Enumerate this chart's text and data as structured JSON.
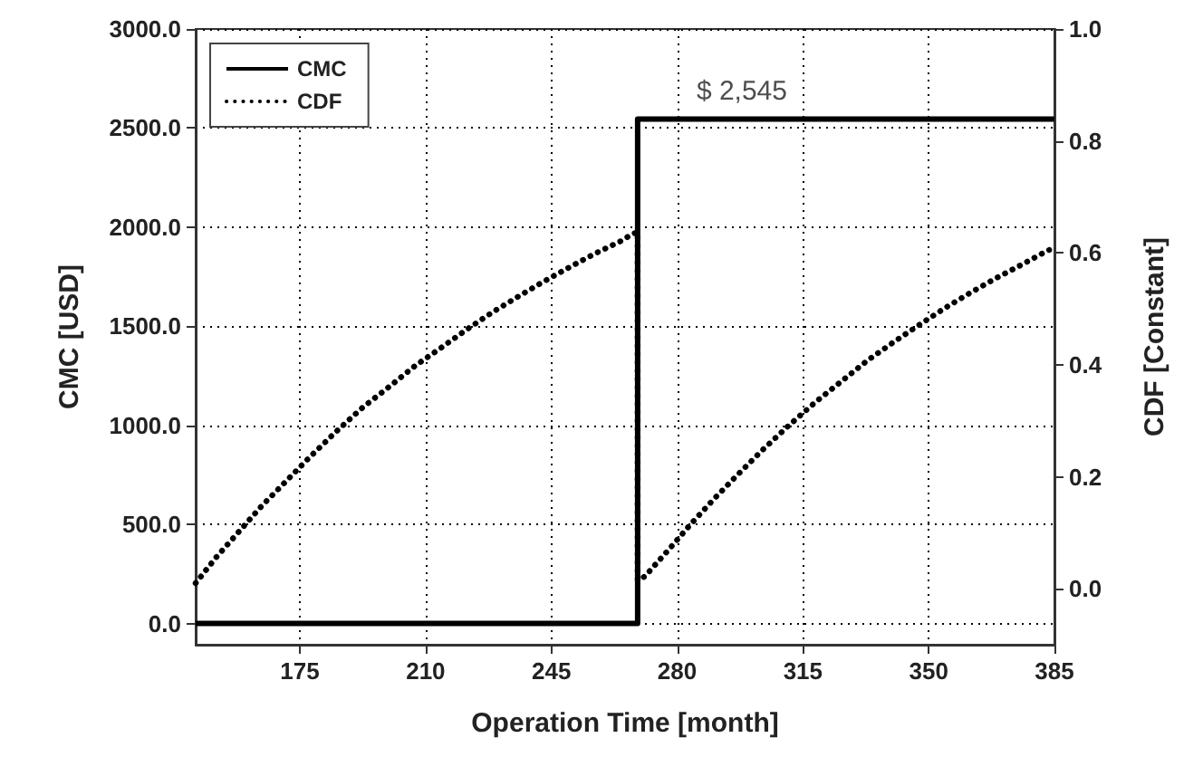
{
  "chart_data": {
    "type": "line",
    "xlabel": "Operation Time [month]",
    "ylabel": "CMC [USD]",
    "y2label": "CDF [Constant]",
    "xlim": [
      146,
      385
    ],
    "xticks": [
      175,
      210,
      245,
      280,
      315,
      350,
      385
    ],
    "ylim": [
      -107,
      3000
    ],
    "yticks": [
      {
        "value": 0,
        "label": "0.0"
      },
      {
        "value": 500,
        "label": "500.0"
      },
      {
        "value": 1000,
        "label": "1000.0"
      },
      {
        "value": 1500,
        "label": "1500.0"
      },
      {
        "value": 2000,
        "label": "2000.0"
      },
      {
        "value": 2500,
        "label": "2500.0"
      },
      {
        "value": 3000,
        "label": "3000.0"
      }
    ],
    "y2lim": [
      -0.1,
      1.0
    ],
    "y2ticks": [
      {
        "value": 0,
        "label": "0.0"
      },
      {
        "value": 0.2,
        "label": "0.2"
      },
      {
        "value": 0.4,
        "label": "0.4"
      },
      {
        "value": 0.6,
        "label": "0.6"
      },
      {
        "value": 0.8,
        "label": "0.8"
      },
      {
        "value": 1,
        "label": "1.0"
      }
    ],
    "grid": true,
    "legend": "top left",
    "marker": "none",
    "annotations": [
      {
        "text": "$ 2,545",
        "x": 298,
        "y": 2545
      }
    ],
    "series": [
      {
        "name": "CMC",
        "color": "#000000",
        "line_style": "solid",
        "x": [
          146,
          269,
          269,
          385
        ],
        "values": [
          0,
          0,
          2545,
          2545
        ]
      },
      {
        "name": "CDF",
        "color": "#000000",
        "line_style": "dotted",
        "axis": "y2",
        "x": [
          146,
          151.7,
          157.9,
          164.4,
          171.3,
          178.2,
          185.3,
          192.5,
          199.9,
          207,
          214.2,
          221.4,
          228.6,
          235.5,
          242.9,
          250.2,
          257.2,
          264.3,
          267.6,
          269,
          269,
          271,
          277.4,
          283.6,
          290.2,
          297.2,
          304.1,
          311.3,
          318.6,
          325.8,
          332.8,
          340.1,
          347.3,
          354.4,
          361.4,
          368.5,
          375.9,
          383.3,
          385
        ],
        "values": [
          0.01,
          0.056,
          0.101,
          0.148,
          0.193,
          0.238,
          0.282,
          0.324,
          0.361,
          0.398,
          0.43,
          0.463,
          0.494,
          0.521,
          0.549,
          0.575,
          0.599,
          0.621,
          0.634,
          0.637,
          0.015,
          0.022,
          0.068,
          0.114,
          0.16,
          0.206,
          0.25,
          0.293,
          0.334,
          0.371,
          0.407,
          0.44,
          0.471,
          0.501,
          0.528,
          0.554,
          0.579,
          0.605,
          0.607
        ]
      }
    ]
  }
}
